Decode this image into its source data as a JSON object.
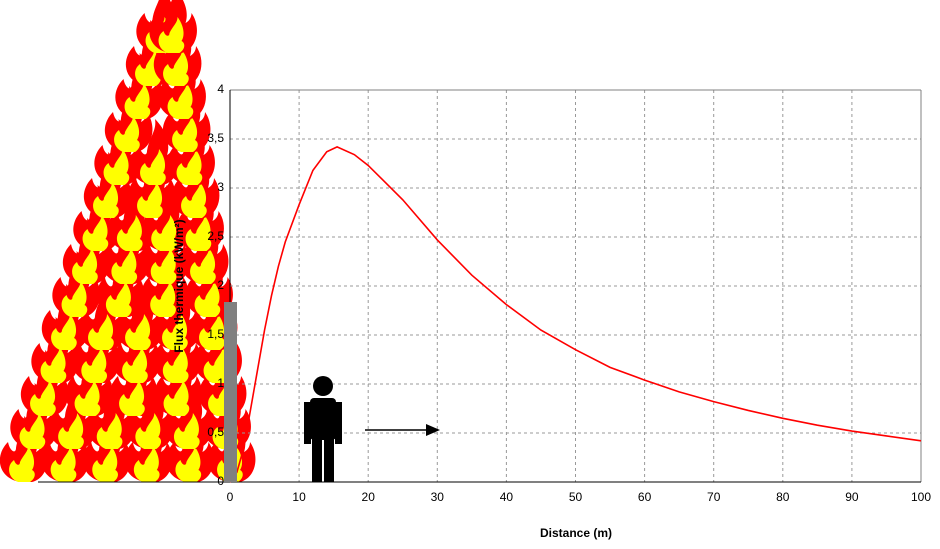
{
  "chart_data": {
    "type": "line",
    "x_label": "Distance (m)",
    "y_label": "Flux thermique (kW/m²)",
    "x": [
      0,
      1,
      2,
      3,
      4,
      5,
      6,
      7,
      8,
      10,
      12,
      14,
      15.5,
      18,
      20,
      25,
      30,
      35,
      40,
      45,
      50,
      55,
      60,
      65,
      70,
      75,
      80,
      85,
      90,
      95,
      100
    ],
    "series": [
      {
        "color": "#ff0000",
        "values": [
          0,
          0.1,
          0.35,
          0.75,
          1.15,
          1.55,
          1.9,
          2.2,
          2.45,
          2.83,
          3.18,
          3.37,
          3.42,
          3.34,
          3.23,
          2.88,
          2.47,
          2.11,
          1.81,
          1.55,
          1.35,
          1.17,
          1.04,
          0.92,
          0.82,
          0.73,
          0.65,
          0.58,
          0.52,
          0.47,
          0.42
        ]
      }
    ],
    "xlim": [
      0,
      100
    ],
    "ylim": [
      0,
      4
    ],
    "xticks": [
      0,
      10,
      20,
      30,
      40,
      50,
      60,
      70,
      80,
      90,
      100
    ],
    "yticks": [
      0,
      {
        "value": 0.5,
        "label": "0,5"
      },
      1,
      {
        "value": 1.5,
        "label": "1,5"
      },
      2,
      {
        "value": 2.5,
        "label": "2,5"
      },
      3,
      {
        "value": 3.5,
        "label": "3,5"
      },
      4
    ],
    "grid": true
  }
}
